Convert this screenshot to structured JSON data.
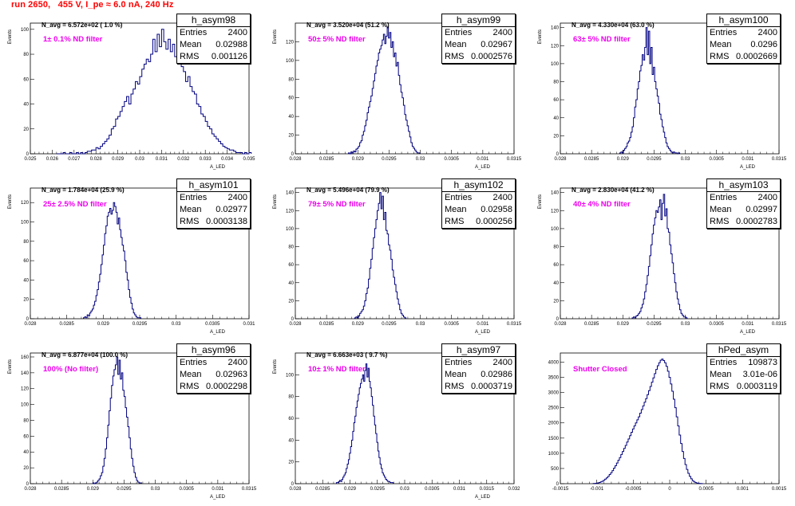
{
  "page_title": "run 2650,   455 V, I_pe ≈ 6.0 nA, 240 Hz",
  "chart_data": [
    {
      "type": "bar",
      "name": "h_asym98",
      "entries": "2400",
      "mean": "0.02988",
      "rms": "0.001126",
      "n_avg": "N_avg = 6.572e+02 ( 1.0 %)",
      "note": "1± 0.1% ND filter",
      "xlabel": "A_LED",
      "ylabel": "Events",
      "xlim": [
        0.025,
        0.035
      ],
      "ylim": [
        0,
        105
      ],
      "xticks": [
        "0.025",
        "0.026",
        "0.027",
        "0.028",
        "0.029",
        "0.03",
        "0.031",
        "0.032",
        "0.033",
        "0.034",
        "0.035"
      ],
      "yticks": [
        0,
        20,
        40,
        60,
        80,
        100
      ],
      "bins": {
        "start": 0.0262,
        "width": 0.0001,
        "values": [
          0,
          0,
          0,
          1,
          0,
          0,
          1,
          0,
          0,
          1,
          0,
          1,
          0,
          1,
          2,
          2,
          3,
          3,
          5,
          4,
          6,
          8,
          10,
          12,
          15,
          20,
          22,
          28,
          30,
          34,
          38,
          42,
          46,
          40,
          48,
          52,
          58,
          56,
          62,
          68,
          72,
          76,
          74,
          80,
          92,
          82,
          96,
          86,
          100,
          90,
          84,
          92,
          82,
          88,
          78,
          84,
          72,
          70,
          66,
          58,
          62,
          54,
          50,
          48,
          40,
          38,
          32,
          30,
          26,
          22,
          20,
          16,
          14,
          12,
          10,
          8,
          6,
          5,
          4,
          3,
          3,
          2,
          1,
          1,
          1,
          0,
          1,
          0,
          1
        ]
      }
    },
    {
      "type": "bar",
      "name": "h_asym99",
      "entries": "2400",
      "mean": "0.02967",
      "rms": "0.0002576",
      "n_avg": "N_avg = 3.520e+04 (51.2 %)",
      "note": "50± 5% ND filter",
      "xlabel": "A_LED",
      "ylabel": "Events",
      "xlim": [
        0.028,
        0.0315
      ],
      "ylim": [
        0,
        140
      ],
      "xticks": [
        "0.028",
        "0.0285",
        "0.029",
        "0.0295",
        "0.03",
        "0.0305",
        "0.031",
        "0.0315"
      ],
      "yticks": [
        0,
        20,
        40,
        60,
        80,
        100,
        120
      ],
      "bins": {
        "start": 0.02885,
        "width": 2e-05,
        "values": [
          1,
          0,
          2,
          1,
          3,
          2,
          5,
          6,
          8,
          12,
          14,
          20,
          24,
          30,
          36,
          44,
          50,
          56,
          62,
          70,
          78,
          86,
          94,
          100,
          108,
          112,
          116,
          122,
          128,
          118,
          126,
          136,
          124,
          130,
          114,
          120,
          104,
          108,
          94,
          98,
          84,
          74,
          66,
          60,
          52,
          42,
          36,
          30,
          24,
          18,
          12,
          8,
          6,
          4,
          2,
          1,
          1
        ]
      }
    },
    {
      "type": "bar",
      "name": "h_asym100",
      "entries": "2400",
      "mean": "0.0296",
      "rms": "0.0002669",
      "n_avg": "N_avg = 4.330e+04 (63.0 %)",
      "note": "63± 5% ND filter",
      "xlabel": "A_LED",
      "ylabel": "Events",
      "xlim": [
        0.028,
        0.0315
      ],
      "ylim": [
        0,
        145
      ],
      "xticks": [
        "0.028",
        "0.0285",
        "0.029",
        "0.0295",
        "0.03",
        "0.0305",
        "0.031",
        "0.0315"
      ],
      "yticks": [
        0,
        20,
        40,
        60,
        80,
        100,
        120,
        140
      ],
      "bins": {
        "start": 0.02895,
        "width": 2e-05,
        "values": [
          1,
          2,
          1,
          4,
          6,
          8,
          12,
          14,
          18,
          24,
          30,
          40,
          52,
          60,
          72,
          80,
          92,
          98,
          110,
          104,
          118,
          140,
          110,
          136,
          100,
          118,
          88,
          96,
          80,
          72,
          64,
          56,
          44,
          38,
          30,
          24,
          18,
          12,
          8,
          6,
          4,
          2,
          1,
          2,
          1,
          1,
          0,
          1
        ]
      }
    },
    {
      "type": "bar",
      "name": "h_asym101",
      "entries": "2400",
      "mean": "0.02977",
      "rms": "0.0003138",
      "n_avg": "N_avg = 1.784e+04 (25.9 %)",
      "note": "25± 2.5% ND filter",
      "xlabel": "A_LED",
      "ylabel": "Events",
      "xlim": [
        0.028,
        0.0315
      ],
      "ylim": [
        0,
        135
      ],
      "xticks": [
        "0.028",
        "0.0285",
        "0.029",
        "0.0295",
        "0.03",
        "0.0305",
        "0.031"
      ],
      "yticks": [
        0,
        20,
        40,
        60,
        80,
        100,
        120
      ],
      "bins": {
        "start": 0.02885,
        "width": 2e-05,
        "values": [
          1,
          2,
          1,
          4,
          3,
          6,
          8,
          10,
          14,
          18,
          24,
          30,
          38,
          46,
          56,
          66,
          76,
          88,
          96,
          106,
          110,
          114,
          108,
          112,
          120,
          116,
          110,
          98,
          104,
          92,
          84,
          76,
          70,
          60,
          48,
          40,
          30,
          22,
          16,
          10,
          6,
          4,
          2,
          1,
          1,
          1
        ]
      }
    },
    {
      "type": "bar",
      "name": "h_asym102",
      "entries": "2400",
      "mean": "0.02958",
      "rms": "0.000256",
      "n_avg": "N_avg = 5.496e+04 (79.9 %)",
      "note": "79± 5% ND filter",
      "xlabel": "A_LED",
      "ylabel": "Events",
      "xlim": [
        0.028,
        0.0315
      ],
      "ylim": [
        0,
        145
      ],
      "xticks": [
        "0.028",
        "0.0285",
        "0.029",
        "0.0295",
        "0.03",
        "0.0305",
        "0.031",
        "0.0315"
      ],
      "yticks": [
        0,
        20,
        40,
        60,
        80,
        100,
        120,
        140
      ],
      "bins": {
        "start": 0.02895,
        "width": 2e-05,
        "values": [
          1,
          2,
          1,
          3,
          6,
          8,
          10,
          14,
          20,
          28,
          34,
          44,
          56,
          66,
          78,
          90,
          100,
          110,
          120,
          128,
          140,
          122,
          136,
          110,
          118,
          98,
          94,
          82,
          76,
          66,
          54,
          46,
          38,
          30,
          22,
          16,
          10,
          6,
          4,
          2,
          1
        ]
      }
    },
    {
      "type": "bar",
      "name": "h_asym103",
      "entries": "2400",
      "mean": "0.02997",
      "rms": "0.0002783",
      "n_avg": "N_avg = 2.830e+04 (41.2 %)",
      "note": "40± 4% ND filter",
      "xlabel": "A_LED",
      "ylabel": "Events",
      "xlim": [
        0.028,
        0.0315
      ],
      "ylim": [
        0,
        145
      ],
      "xticks": [
        "0.028",
        "0.0285",
        "0.029",
        "0.0295",
        "0.03",
        "0.0305",
        "0.031",
        "0.0315"
      ],
      "yticks": [
        0,
        20,
        40,
        60,
        80,
        100,
        120,
        140
      ],
      "bins": {
        "start": 0.02915,
        "width": 2e-05,
        "values": [
          1,
          2,
          1,
          3,
          4,
          6,
          8,
          12,
          16,
          22,
          30,
          38,
          48,
          58,
          70,
          82,
          94,
          104,
          112,
          120,
          118,
          124,
          132,
          110,
          128,
          138,
          114,
          122,
          100,
          96,
          82,
          72,
          62,
          50,
          40,
          30,
          22,
          16,
          10,
          6,
          4,
          2,
          2,
          1
        ]
      }
    },
    {
      "type": "bar",
      "name": "h_asym96",
      "entries": "2400",
      "mean": "0.02963",
      "rms": "0.0002298",
      "n_avg": "N_avg = 6.877e+04 (100.0 %)",
      "note": "100% (No filter)",
      "xlabel": "A_LED",
      "ylabel": "Events",
      "xlim": [
        0.028,
        0.0315
      ],
      "ylim": [
        0,
        165
      ],
      "xticks": [
        "0.028",
        "0.0285",
        "0.029",
        "0.0295",
        "0.03",
        "0.0305",
        "0.031",
        "0.0315"
      ],
      "yticks": [
        0,
        20,
        40,
        60,
        80,
        100,
        120,
        140,
        160
      ],
      "bins": {
        "start": 0.029,
        "width": 2e-05,
        "values": [
          1,
          0,
          1,
          2,
          4,
          6,
          10,
          14,
          22,
          32,
          44,
          58,
          74,
          92,
          108,
          124,
          136,
          144,
          150,
          160,
          138,
          156,
          132,
          140,
          118,
          110,
          96,
          84,
          72,
          58,
          44,
          32,
          22,
          14,
          8,
          4,
          2,
          1,
          1
        ]
      }
    },
    {
      "type": "bar",
      "name": "h_asym97",
      "entries": "2400",
      "mean": "0.02986",
      "rms": "0.0003719",
      "n_avg": "N_avg = 6.663e+03 ( 9.7 %)",
      "note": "10± 1% ND filter",
      "xlabel": "A_LED",
      "ylabel": "Events",
      "xlim": [
        0.028,
        0.032
      ],
      "ylim": [
        0,
        120
      ],
      "xticks": [
        "0.028",
        "0.0285",
        "0.029",
        "0.0295",
        "0.03",
        "0.0305",
        "0.031",
        "0.0315",
        "0.032"
      ],
      "yticks": [
        0,
        20,
        40,
        60,
        80,
        100
      ],
      "bins": {
        "start": 0.02875,
        "width": 2e-05,
        "values": [
          1,
          1,
          2,
          3,
          2,
          4,
          6,
          8,
          10,
          14,
          18,
          22,
          28,
          34,
          40,
          48,
          56,
          62,
          70,
          76,
          82,
          88,
          92,
          96,
          100,
          94,
          104,
          110,
          98,
          106,
          94,
          88,
          80,
          72,
          62,
          54,
          46,
          38,
          30,
          24,
          18,
          14,
          10,
          8,
          6,
          4,
          3,
          2,
          2,
          1,
          1,
          1
        ]
      }
    },
    {
      "type": "bar",
      "name": "hPed_asym",
      "entries": "109873",
      "mean": "3.01e-06",
      "rms": "0.0003119",
      "n_avg": "",
      "note": "Shutter Closed",
      "xlabel": "",
      "ylabel": "",
      "xlim": [
        -0.0015,
        0.0015
      ],
      "ylim": [
        0,
        4300
      ],
      "xticks": [
        "-0.0015",
        "-0.001",
        "-0.0005",
        "0",
        "0.0005",
        "0.001",
        "0.0015"
      ],
      "yticks": [
        0,
        500,
        1000,
        1500,
        2000,
        2500,
        3000,
        3500,
        4000
      ],
      "bins": {
        "start": -0.00105,
        "width": 2e-05,
        "values": [
          5,
          10,
          15,
          25,
          40,
          60,
          80,
          110,
          150,
          190,
          240,
          300,
          360,
          430,
          510,
          590,
          680,
          770,
          860,
          960,
          1060,
          1160,
          1260,
          1370,
          1470,
          1580,
          1690,
          1800,
          1900,
          2000,
          2100,
          2200,
          2320,
          2440,
          2560,
          2680,
          2800,
          2930,
          3060,
          3200,
          3340,
          3480,
          3620,
          3760,
          3880,
          3980,
          4060,
          4100,
          4050,
          3980,
          3860,
          3700,
          3500,
          3280,
          3040,
          2780,
          2500,
          2200,
          1900,
          1600,
          1320,
          1060,
          830,
          630,
          470,
          340,
          240,
          160,
          100,
          60,
          35,
          20,
          10,
          5,
          2
        ]
      }
    }
  ]
}
